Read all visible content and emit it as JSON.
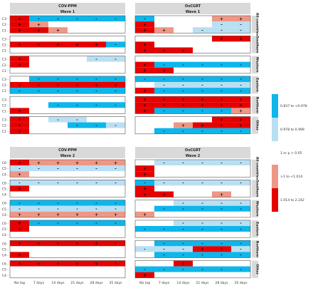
{
  "colors": {
    "strong_neg": "#0db6eb",
    "weak_neg": "#b9dff3",
    "ns": "#ffffff",
    "weak_pos": "#ef9786",
    "strong_pos": "#e60000",
    "strip": "#d9d9d9",
    "border": "#555555",
    "grid": "#cccccc"
  },
  "chart_data": {
    "type": "heatmap",
    "x_categories": [
      "No lag",
      "7 days",
      "14 days",
      "21 days",
      "28 days",
      "35 days"
    ],
    "value_encoding": {
      "2": "1.014 to 2.242",
      "1": ">1 to <1.014",
      "0": "1 or p > 0.05",
      "-1": "0.978 to 0.999",
      "-2": "0.837 to <0.978"
    },
    "legend": [
      {
        "code": -2,
        "label": "0.837 to <0.978"
      },
      {
        "code": -1,
        "label": "0.978 to 0.999"
      },
      {
        "code": 0,
        "label": "1 or p > 0.05"
      },
      {
        "code": 1,
        "label": ">1 to <1.014"
      },
      {
        "code": 2,
        "label": "1.014 to 2.242"
      }
    ],
    "column_headers": [
      {
        "title": "COV-PPM",
        "subtitle": "Wave 1"
      },
      {
        "title": "OxCGRT",
        "subtitle": "Wave 1"
      },
      {
        "title": "COV-PPM",
        "subtitle": "Wave 2"
      },
      {
        "title": "OxCGRT",
        "subtitle": "Wave 2"
      }
    ],
    "region_labels": [
      "All countries",
      "Southern",
      "Western",
      "Eastern",
      "Northern",
      "Other"
    ],
    "wave1_rows": [
      "C3",
      "C2",
      "C1"
    ],
    "wave2_rows": [
      "C6",
      "C5",
      "C4"
    ],
    "panels": [
      {
        "panel": "COV-PPM Wave 1",
        "groups": [
          [
            [
              2,
              -2,
              -2,
              -2,
              -2,
              -2
            ],
            [
              2,
              1,
              0,
              0,
              0,
              0
            ],
            [
              2,
              2,
              1,
              0,
              0,
              0
            ]
          ],
          [
            [
              0,
              0,
              0,
              0,
              0,
              0
            ],
            [
              2,
              2,
              2,
              2,
              2,
              -2
            ],
            [
              0,
              0,
              0,
              0,
              0,
              0
            ]
          ],
          [
            [
              2,
              0,
              0,
              0,
              -1,
              -1
            ],
            [
              2,
              0,
              0,
              0,
              0,
              0
            ],
            [
              0,
              0,
              0,
              0,
              0,
              0
            ]
          ],
          [
            [
              0,
              -2,
              -2,
              -2,
              -2,
              -2
            ],
            [
              2,
              2,
              2,
              2,
              2,
              2
            ],
            [
              -2,
              -2,
              -2,
              -2,
              -2,
              -2
            ]
          ],
          [
            [
              0,
              0,
              0,
              0,
              0,
              0
            ],
            [
              0,
              0,
              -2,
              -2,
              -2,
              -2
            ],
            [
              2,
              0,
              0,
              0,
              0,
              0
            ]
          ],
          [
            [
              2,
              0,
              -1,
              -1,
              0,
              0
            ],
            [
              2,
              0,
              0,
              -2,
              -2,
              -1
            ],
            [
              2,
              0,
              0,
              0,
              0,
              0
            ]
          ]
        ]
      },
      {
        "panel": "OxCGRT Wave 1",
        "groups": [
          [
            [
              -2,
              0,
              0,
              0,
              1,
              1
            ],
            [
              2,
              0,
              0,
              0,
              -1,
              -1
            ],
            [
              2,
              1,
              0,
              -1,
              -1,
              -1
            ]
          ],
          [
            [
              0,
              0,
              0,
              0,
              2,
              2
            ],
            [
              2,
              0,
              0,
              0,
              0,
              0
            ],
            [
              2,
              2,
              2,
              0,
              0,
              0
            ]
          ],
          [
            [
              0,
              0,
              0,
              0,
              0,
              0
            ],
            [
              2,
              -2,
              -2,
              -2,
              -2,
              -2
            ],
            [
              2,
              2,
              0,
              0,
              0,
              0
            ]
          ],
          [
            [
              -2,
              -2,
              -2,
              -2,
              -2,
              -2
            ],
            [
              0,
              -1,
              -1,
              -1,
              -1,
              -1
            ],
            [
              2,
              -2,
              -2,
              -2,
              -2,
              -2
            ]
          ],
          [
            [
              2,
              2,
              2,
              2,
              2,
              2
            ],
            [
              2,
              2,
              2,
              2,
              2,
              2
            ],
            [
              2,
              -2,
              -2,
              -2,
              -2,
              1
            ]
          ],
          [
            [
              0,
              0,
              0,
              0,
              2,
              2
            ],
            [
              0,
              0,
              1,
              2,
              2,
              2
            ],
            [
              0,
              -2,
              -2,
              -2,
              -2,
              -2
            ]
          ]
        ]
      },
      {
        "panel": "COV-PPM Wave 2",
        "groups": [
          [
            [
              2,
              1,
              1,
              1,
              1,
              1
            ],
            [
              -1,
              -1,
              -1,
              -1,
              -1,
              -1
            ],
            [
              1,
              0,
              0,
              0,
              0,
              0
            ]
          ],
          [
            [
              -1,
              -1,
              -1,
              -1,
              -1,
              -1
            ],
            [
              2,
              0,
              0,
              0,
              0,
              0
            ],
            [
              0,
              0,
              0,
              0,
              0,
              0
            ]
          ],
          [
            [
              -2,
              -2,
              -2,
              -2,
              -2,
              -2
            ],
            [
              -1,
              -1,
              -1,
              -1,
              -1,
              -1
            ],
            [
              1,
              1,
              1,
              1,
              1,
              1
            ]
          ],
          [
            [
              2,
              -2,
              -2,
              -2,
              -2,
              -2
            ],
            [
              2,
              0,
              0,
              0,
              0,
              0
            ],
            [
              0,
              0,
              0,
              0,
              0,
              0
            ]
          ],
          [
            [
              2,
              2,
              2,
              2,
              2,
              2
            ],
            [
              0,
              0,
              0,
              0,
              0,
              0
            ],
            [
              2,
              0,
              0,
              0,
              0,
              0
            ]
          ],
          [
            [
              2,
              2,
              2,
              2,
              2,
              2
            ],
            [
              0,
              0,
              0,
              0,
              0,
              0
            ],
            [
              0,
              0,
              0,
              0,
              0,
              0
            ]
          ]
        ]
      },
      {
        "panel": "OxCGRT Wave 2",
        "groups": [
          [
            [
              0,
              -1,
              -1,
              -1,
              -1,
              -1
            ],
            [
              2,
              0,
              0,
              0,
              0,
              0
            ],
            [
              2,
              0,
              0,
              0,
              0,
              0
            ]
          ],
          [
            [
              -2,
              -1,
              -1,
              -1,
              -1,
              -1
            ],
            [
              2,
              0,
              0,
              0,
              0,
              0
            ],
            [
              2,
              2,
              0,
              0,
              1,
              0
            ]
          ],
          [
            [
              0,
              0,
              -1,
              -1,
              -1,
              -1
            ],
            [
              0,
              -2,
              -2,
              -2,
              -2,
              -2
            ],
            [
              1,
              0,
              0,
              0,
              0,
              0
            ]
          ],
          [
            [
              0,
              0,
              -1,
              -1,
              -1,
              -1
            ],
            [
              -2,
              -2,
              -2,
              -2,
              -2,
              -2
            ],
            [
              0,
              0,
              0,
              0,
              0,
              0
            ]
          ],
          [
            [
              0,
              -2,
              -2,
              -2,
              -2,
              -2
            ],
            [
              -1,
              -1,
              -1,
              2,
              2,
              -1
            ],
            [
              0,
              -2,
              -2,
              -2,
              -2,
              -2
            ]
          ],
          [
            [
              0,
              0,
              2,
              0,
              0,
              0
            ],
            [
              -2,
              -2,
              -2,
              -2,
              -2,
              -2
            ],
            [
              2,
              0,
              0,
              0,
              0,
              0
            ]
          ]
        ]
      }
    ]
  }
}
